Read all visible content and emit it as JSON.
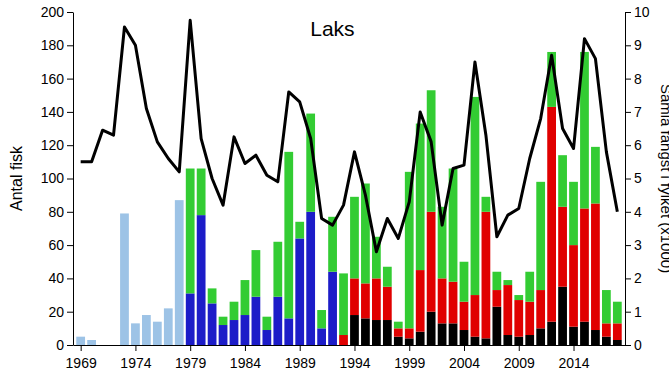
{
  "chart_data": {
    "type": "bar",
    "title": "Laks",
    "y_label": "Antal fisk",
    "y2_label": "Samla fangst i fylket (x1000)",
    "stacked": true,
    "x": [
      1969,
      1970,
      1971,
      1972,
      1973,
      1974,
      1975,
      1976,
      1977,
      1978,
      1979,
      1980,
      1981,
      1982,
      1983,
      1984,
      1985,
      1986,
      1987,
      1988,
      1989,
      1990,
      1991,
      1992,
      1993,
      1994,
      1995,
      1996,
      1997,
      1998,
      1999,
      2000,
      2001,
      2002,
      2003,
      2004,
      2005,
      2006,
      2007,
      2008,
      2009,
      2010,
      2011,
      2012,
      2013,
      2014,
      2015,
      2016,
      2017,
      2018
    ],
    "xlim": [
      1968.3,
      2018.7
    ],
    "xticks": [
      1969,
      1974,
      1979,
      1984,
      1989,
      1994,
      1999,
      2004,
      2009,
      2014
    ],
    "ylim": [
      0,
      200
    ],
    "yticks": [
      0,
      20,
      40,
      60,
      80,
      100,
      120,
      140,
      160,
      180,
      200
    ],
    "y2lim": [
      0,
      10
    ],
    "y2ticks": [
      0,
      1,
      2,
      3,
      4,
      5,
      6,
      7,
      8,
      9,
      10
    ],
    "series": [
      {
        "type": "bar",
        "color": "#9dc3e6",
        "values": [
          5,
          3,
          null,
          null,
          79,
          13,
          18,
          14,
          22,
          87,
          null,
          null,
          null,
          null,
          null,
          null,
          null,
          null,
          null,
          null,
          null,
          null,
          null,
          null,
          null,
          null,
          null,
          null,
          null,
          null,
          null,
          null,
          null,
          null,
          null,
          null,
          null,
          null,
          null,
          null,
          null,
          null,
          null,
          null,
          null,
          null,
          null,
          null,
          null,
          null
        ]
      },
      {
        "type": "bar",
        "color": "#1c1cc8",
        "values": [
          null,
          null,
          null,
          null,
          null,
          null,
          null,
          null,
          null,
          null,
          31,
          78,
          25,
          12,
          15,
          18,
          29,
          9,
          29,
          16,
          64,
          80,
          10,
          44,
          null,
          null,
          null,
          null,
          null,
          null,
          null,
          null,
          null,
          null,
          null,
          null,
          null,
          null,
          null,
          null,
          null,
          null,
          null,
          null,
          null,
          null,
          null,
          null,
          null,
          null
        ]
      },
      {
        "type": "bar",
        "color": "#000000",
        "values": [
          null,
          null,
          null,
          null,
          null,
          null,
          null,
          null,
          null,
          null,
          null,
          null,
          null,
          null,
          null,
          null,
          null,
          null,
          null,
          null,
          null,
          null,
          null,
          null,
          null,
          18,
          16,
          15,
          15,
          5,
          4,
          8,
          20,
          13,
          13,
          9,
          5,
          4,
          23,
          6,
          5,
          6,
          10,
          14,
          35,
          11,
          14,
          9,
          5,
          3
        ]
      },
      {
        "type": "bar",
        "color": "#e00000",
        "values": [
          null,
          null,
          null,
          null,
          null,
          null,
          null,
          null,
          null,
          null,
          null,
          null,
          null,
          null,
          null,
          null,
          null,
          null,
          null,
          null,
          null,
          null,
          null,
          null,
          6,
          22,
          21,
          25,
          20,
          5,
          6,
          37,
          60,
          27,
          25,
          17,
          25,
          76,
          10,
          30,
          22,
          20,
          23,
          129,
          48,
          49,
          68,
          76,
          8,
          10
        ]
      },
      {
        "type": "bar",
        "color": "#33cc33",
        "values": [
          null,
          null,
          null,
          null,
          null,
          null,
          null,
          null,
          null,
          null,
          75,
          28,
          9,
          5,
          11,
          21,
          28,
          8,
          33,
          100,
          10,
          59,
          11,
          33,
          37,
          49,
          60,
          25,
          12,
          4,
          94,
          88,
          73,
          43,
          68,
          24,
          119,
          9,
          11,
          3,
          3,
          18,
          65,
          33,
          31,
          38,
          94,
          34,
          20,
          13
        ]
      },
      {
        "type": "line",
        "axis": "y2",
        "color": "#000000",
        "values": [
          5.5,
          5.5,
          6.45,
          6.3,
          9.55,
          9.0,
          7.1,
          6.1,
          5.6,
          5.2,
          9.75,
          6.2,
          5.0,
          4.2,
          6.25,
          5.45,
          5.7,
          5.1,
          4.9,
          7.6,
          7.3,
          6.2,
          3.8,
          3.6,
          4.2,
          5.8,
          4.5,
          2.8,
          3.8,
          3.2,
          4.3,
          7.0,
          6.1,
          3.6,
          5.3,
          5.4,
          8.5,
          6.3,
          3.25,
          3.9,
          4.1,
          5.6,
          6.8,
          8.7,
          6.5,
          5.9,
          9.2,
          8.6,
          5.8,
          4.0
        ]
      }
    ]
  }
}
